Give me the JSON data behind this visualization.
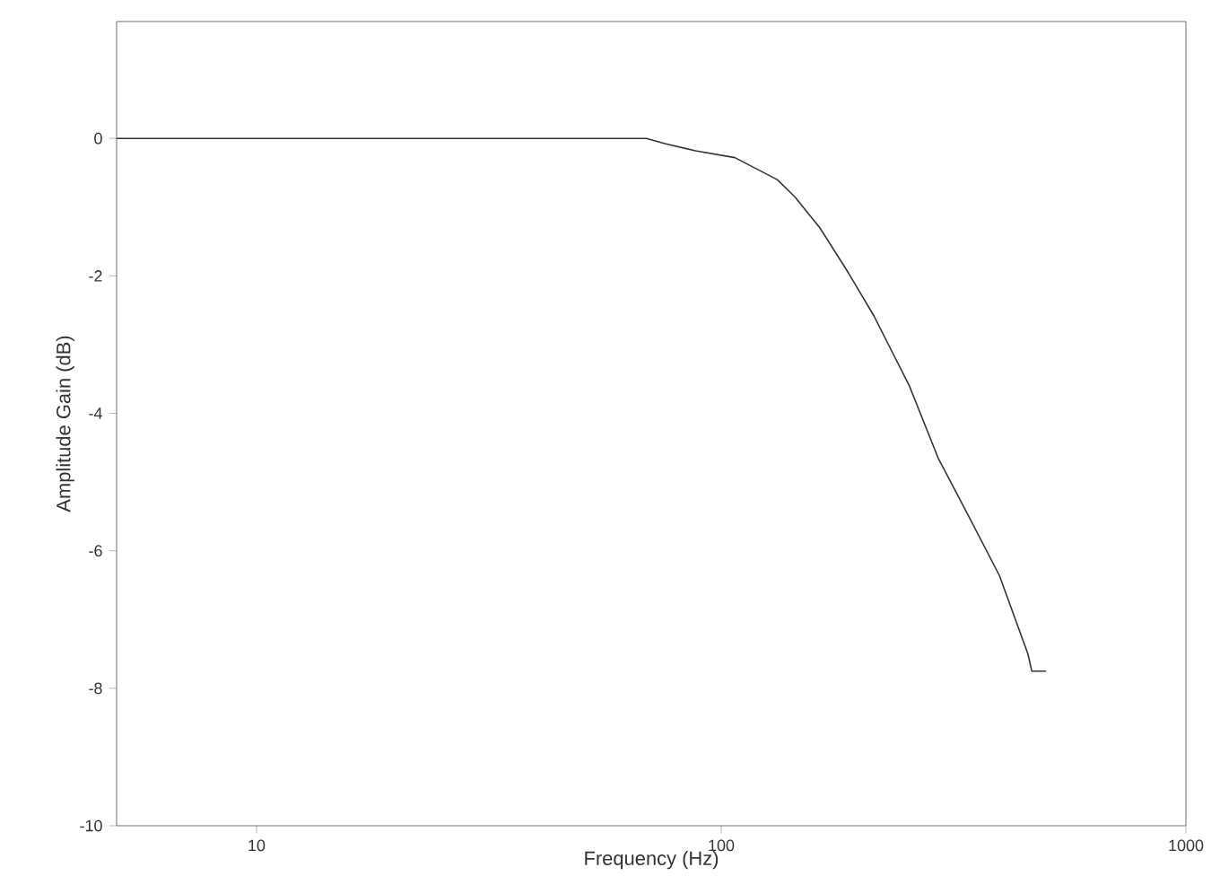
{
  "chart_data": {
    "type": "line",
    "xlabel": "Frequency (Hz)",
    "ylabel": "Amplitude Gain (dB)",
    "log": "x",
    "xlim": [
      5,
      1000
    ],
    "xticks": [
      10,
      100,
      1000
    ],
    "ylim": [
      -10,
      1.7
    ],
    "yticks": [
      -10,
      -8,
      -6,
      -4,
      -2,
      0
    ],
    "grid": false,
    "marker": "none",
    "line_style": "solid",
    "series": [
      {
        "color": "#333333",
        "x": [
          5,
          69,
          76,
          88,
          107,
          132,
          144,
          163,
          188,
          213,
          254,
          293,
          341,
          397,
          457,
          466,
          500
        ],
        "values": [
          0,
          0,
          -0.08,
          -0.18,
          -0.28,
          -0.6,
          -0.85,
          -1.3,
          -1.96,
          -2.58,
          -3.6,
          -4.65,
          -5.5,
          -6.36,
          -7.5,
          -7.75,
          -7.75
        ]
      }
    ]
  }
}
